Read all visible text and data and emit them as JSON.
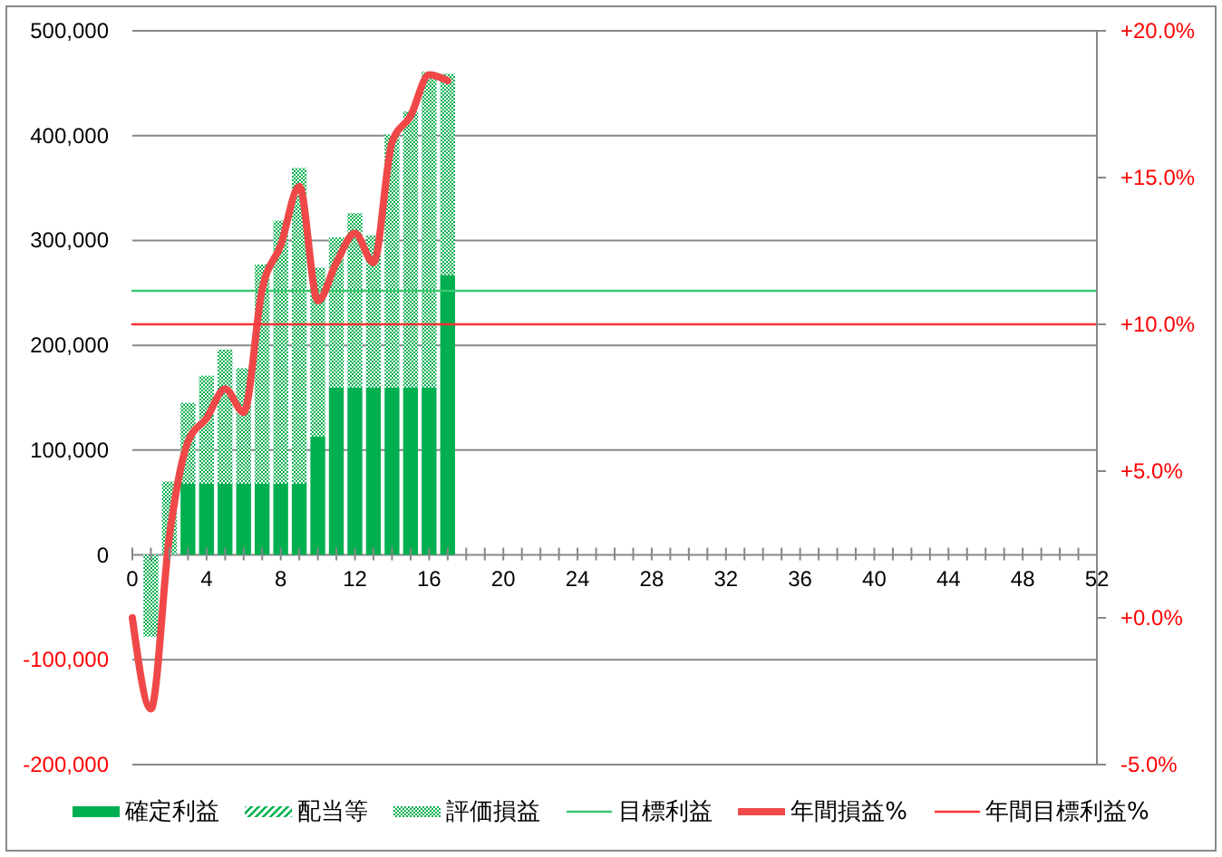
{
  "chart_data": {
    "type": "bar",
    "stacked": true,
    "x": [
      0,
      1,
      2,
      3,
      4,
      5,
      6,
      7,
      8,
      9,
      10,
      11,
      12,
      13,
      14,
      15,
      16,
      17,
      18,
      19,
      20,
      21,
      22,
      23,
      24,
      25,
      26,
      27,
      28,
      29,
      30,
      31,
      32,
      33,
      34,
      35,
      36,
      37,
      38,
      39,
      40,
      41,
      42,
      43,
      44,
      45,
      46,
      47,
      48,
      49,
      50,
      51,
      52
    ],
    "xlim": [
      0,
      52
    ],
    "xticks": [
      0,
      {
        "value": 1,
        "label": null
      },
      {
        "value": 2,
        "label": null
      },
      {
        "value": 3,
        "label": null
      },
      4,
      {
        "value": 5,
        "label": null
      },
      {
        "value": 6,
        "label": null
      },
      {
        "value": 7,
        "label": null
      },
      8,
      {
        "value": 9,
        "label": null
      },
      {
        "value": 10,
        "label": null
      },
      {
        "value": 11,
        "label": null
      },
      12,
      {
        "value": 13,
        "label": null
      },
      {
        "value": 14,
        "label": null
      },
      {
        "value": 15,
        "label": null
      },
      16,
      {
        "value": 17,
        "label": null
      },
      {
        "value": 18,
        "label": null
      },
      {
        "value": 19,
        "label": null
      },
      20,
      {
        "value": 21,
        "label": null
      },
      {
        "value": 22,
        "label": null
      },
      {
        "value": 23,
        "label": null
      },
      24,
      {
        "value": 25,
        "label": null
      },
      {
        "value": 26,
        "label": null
      },
      {
        "value": 27,
        "label": null
      },
      28,
      {
        "value": 29,
        "label": null
      },
      {
        "value": 30,
        "label": null
      },
      {
        "value": 31,
        "label": null
      },
      32,
      {
        "value": 33,
        "label": null
      },
      {
        "value": 34,
        "label": null
      },
      {
        "value": 35,
        "label": null
      },
      36,
      {
        "value": 37,
        "label": null
      },
      {
        "value": 38,
        "label": null
      },
      {
        "value": 39,
        "label": null
      },
      40,
      {
        "value": 41,
        "label": null
      },
      {
        "value": 42,
        "label": null
      },
      {
        "value": 43,
        "label": null
      },
      44,
      {
        "value": 45,
        "label": null
      },
      {
        "value": 46,
        "label": null
      },
      {
        "value": 47,
        "label": null
      },
      48,
      {
        "value": 49,
        "label": null
      },
      {
        "value": 50,
        "label": null
      },
      {
        "value": 51,
        "label": null
      },
      52
    ],
    "ylim": [
      -200000,
      500000
    ],
    "yticks": [
      {
        "value": -200000,
        "label": "-200,000"
      },
      {
        "value": -100000,
        "label": "-100,000"
      },
      0,
      {
        "value": 100000,
        "label": "100,000"
      },
      {
        "value": 200000,
        "label": "200,000"
      },
      {
        "value": 300000,
        "label": "300,000"
      },
      {
        "value": 400000,
        "label": "400,000"
      },
      {
        "value": 500000,
        "label": "500,000"
      }
    ],
    "y2lim": [
      -5,
      20
    ],
    "y2ticks": [
      {
        "value": -5,
        "label": "-5.0%"
      },
      {
        "value": 0,
        "label": "+0.0%"
      },
      {
        "value": 5,
        "label": "+5.0%"
      },
      {
        "value": 10,
        "label": "+10.0%"
      },
      {
        "value": 15,
        "label": "+15.0%"
      },
      {
        "value": 20,
        "label": "+20.0%"
      }
    ],
    "grid": "y",
    "legend": "bottom",
    "series": [
      {
        "name": "確定利益",
        "color": "#00b050",
        "values": [
          null,
          null,
          null,
          68000,
          68000,
          68000,
          68000,
          68000,
          68000,
          68000,
          113000,
          160000,
          160000,
          160000,
          160000,
          160000,
          160000,
          267000,
          null,
          null,
          null,
          null,
          null,
          null,
          null,
          null,
          null,
          null,
          null,
          null,
          null,
          null,
          null,
          null,
          null,
          null,
          null,
          null,
          null,
          null,
          null,
          null,
          null,
          null,
          null,
          null,
          null,
          null,
          null,
          null,
          null,
          null,
          null
        ]
      },
      {
        "name": "配当等",
        "color": "#00b050",
        "values": [
          null,
          null,
          null,
          null,
          null,
          null,
          null,
          null,
          null,
          null,
          null,
          null,
          null,
          null,
          null,
          null,
          null,
          null,
          null,
          null,
          null,
          null,
          null,
          null,
          null,
          null,
          null,
          null,
          null,
          null,
          null,
          null,
          null,
          null,
          null,
          null,
          null,
          null,
          null,
          null,
          null,
          null,
          null,
          null,
          null,
          null,
          null,
          null,
          null,
          null,
          null,
          null,
          null
        ]
      },
      {
        "name": "評価損益",
        "color": "#00b050",
        "values": [
          null,
          -78000,
          70000,
          77000,
          103000,
          128000,
          110000,
          209000,
          251000,
          301000,
          161000,
          143000,
          166000,
          145000,
          241000,
          263000,
          301000,
          192000,
          null,
          null,
          null,
          null,
          null,
          null,
          null,
          null,
          null,
          null,
          null,
          null,
          null,
          null,
          null,
          null,
          null,
          null,
          null,
          null,
          null,
          null,
          null,
          null,
          null,
          null,
          null,
          null,
          null,
          null,
          null,
          null,
          null,
          null,
          null
        ]
      },
      {
        "name": "目標利益",
        "type": "line",
        "color": "#3cc870",
        "values": [
          252000,
          252000,
          252000,
          252000,
          252000,
          252000,
          252000,
          252000,
          252000,
          252000,
          252000,
          252000,
          252000,
          252000,
          252000,
          252000,
          252000,
          252000,
          252000,
          252000,
          252000,
          252000,
          252000,
          252000,
          252000,
          252000,
          252000,
          252000,
          252000,
          252000,
          252000,
          252000,
          252000,
          252000,
          252000,
          252000,
          252000,
          252000,
          252000,
          252000,
          252000,
          252000,
          252000,
          252000,
          252000,
          252000,
          252000,
          252000,
          252000,
          252000,
          252000,
          252000,
          252000
        ]
      },
      {
        "name": "年間損益%",
        "type": "line",
        "axis": "y2",
        "color": "#f04848",
        "values": [
          0.0,
          -3.1,
          2.8,
          6.0,
          6.8,
          7.8,
          7.0,
          11.2,
          12.7,
          14.7,
          10.8,
          12.1,
          13.1,
          12.1,
          16.2,
          17.1,
          18.5,
          18.3,
          null,
          null,
          null,
          null,
          null,
          null,
          null,
          null,
          null,
          null,
          null,
          null,
          null,
          null,
          null,
          null,
          null,
          null,
          null,
          null,
          null,
          null,
          null,
          null,
          null,
          null,
          null,
          null,
          null,
          null,
          null,
          null,
          null,
          null,
          null
        ]
      },
      {
        "name": "年間目標利益%",
        "type": "line",
        "axis": "y2",
        "color": "#ff3333",
        "values": [
          10,
          10,
          10,
          10,
          10,
          10,
          10,
          10,
          10,
          10,
          10,
          10,
          10,
          10,
          10,
          10,
          10,
          10,
          10,
          10,
          10,
          10,
          10,
          10,
          10,
          10,
          10,
          10,
          10,
          10,
          10,
          10,
          10,
          10,
          10,
          10,
          10,
          10,
          10,
          10,
          10,
          10,
          10,
          10,
          10,
          10,
          10,
          10,
          10,
          10,
          10,
          10,
          10
        ]
      }
    ]
  }
}
